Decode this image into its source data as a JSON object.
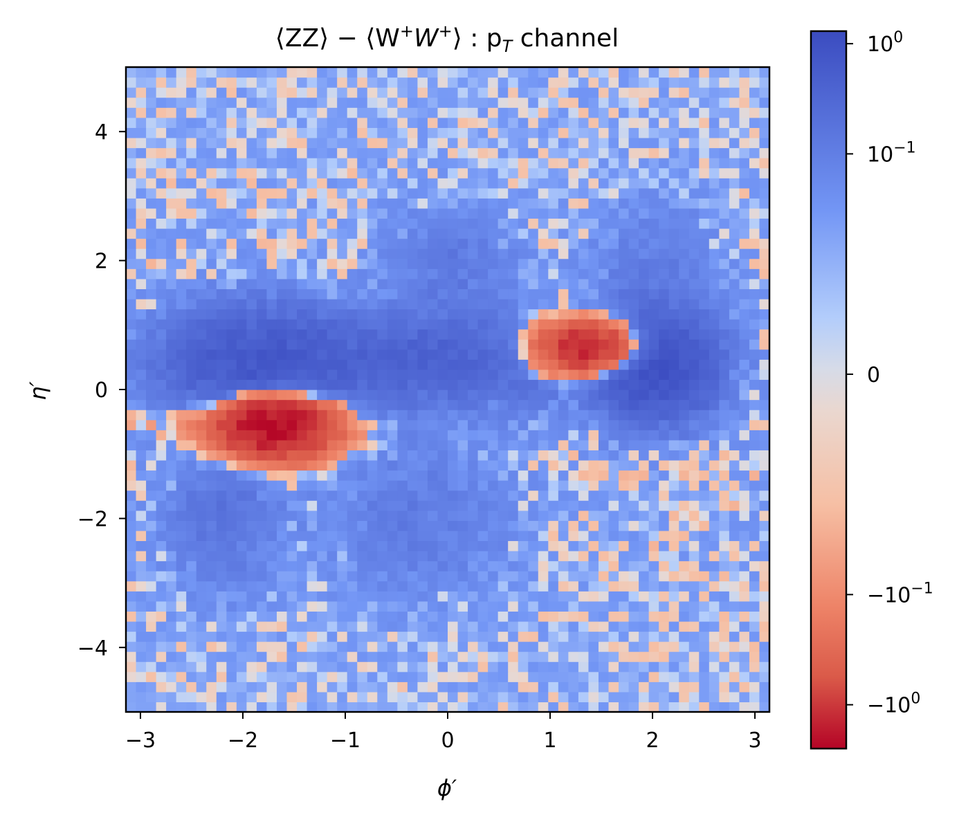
{
  "chart_data": {
    "type": "heatmap",
    "title": "⟨ZZ⟩ − ⟨W⁺W⁺⟩ : p_T channel",
    "title_parts": {
      "main": "⟨ZZ⟩ − ⟨W",
      "sup1": "+",
      "mid": "W",
      "sup2": "+",
      "after": "⟩ : p",
      "sub": "T",
      "tail": " channel"
    },
    "xlabel": "ϕ′",
    "ylabel": "η′",
    "xlim": [
      -3.14159,
      3.14159
    ],
    "ylim": [
      -5,
      5
    ],
    "xticks": [
      -3,
      -2,
      -1,
      0,
      1,
      2,
      3
    ],
    "xtick_labels": [
      "−3",
      "−2",
      "−1",
      "0",
      "1",
      "2",
      "3"
    ],
    "yticks": [
      -4,
      -2,
      0,
      2,
      4
    ],
    "ytick_labels": [
      "−4",
      "−2",
      "0",
      "2",
      "4"
    ],
    "grid": false,
    "colormap": "coolwarm",
    "color_scale": "symlog",
    "color_range": [
      -2.5,
      1.3
    ],
    "linthresh": 0.01,
    "colorbar": {
      "ticks": [
        1,
        0.1,
        0,
        -0.1,
        -1
      ],
      "tick_labels": [
        {
          "base": "10",
          "exp": "0"
        },
        {
          "base": "10",
          "exp": "−1"
        },
        {
          "base": "0",
          "exp": ""
        },
        {
          "base": "−10",
          "exp": "−1"
        },
        {
          "base": "−10",
          "exp": "0"
        }
      ]
    },
    "grid_size": {
      "nx": 64,
      "ny": 64
    },
    "background_value": 0.01,
    "features": [
      {
        "kind": "positive",
        "phi": -1.9,
        "eta": 0.4,
        "sigma_phi": 0.55,
        "sigma_eta": 0.55,
        "amplitude": 0.6
      },
      {
        "kind": "positive",
        "phi": -0.2,
        "eta": 0.45,
        "sigma_phi": 1.1,
        "sigma_eta": 0.45,
        "amplitude": 0.4
      },
      {
        "kind": "positive",
        "phi": 2.05,
        "eta": 0.35,
        "sigma_phi": 0.35,
        "sigma_eta": 0.5,
        "amplitude": 1.0
      },
      {
        "kind": "positive",
        "phi": -2.2,
        "eta": -1.9,
        "sigma_phi": 0.35,
        "sigma_eta": 0.8,
        "amplitude": 0.15
      },
      {
        "kind": "positive",
        "phi": 0.0,
        "eta": 1.9,
        "sigma_phi": 0.4,
        "sigma_eta": 0.6,
        "amplitude": 0.12
      },
      {
        "kind": "positive",
        "phi": 2.0,
        "eta": 1.8,
        "sigma_phi": 0.4,
        "sigma_eta": 0.8,
        "amplitude": 0.1
      },
      {
        "kind": "positive",
        "phi": -0.3,
        "eta": -2.0,
        "sigma_phi": 0.6,
        "sigma_eta": 0.8,
        "amplitude": 0.1
      },
      {
        "kind": "negative",
        "phi": -1.7,
        "eta": -0.55,
        "sigma_phi": 0.35,
        "sigma_eta": 0.3,
        "amplitude": -2.4
      },
      {
        "kind": "negative",
        "phi": -2.6,
        "eta": -0.5,
        "sigma_phi": 0.35,
        "sigma_eta": 0.15,
        "amplitude": -0.08
      },
      {
        "kind": "negative",
        "phi": 1.45,
        "eta": 0.65,
        "sigma_phi": 0.32,
        "sigma_eta": 0.25,
        "amplitude": -1.6
      },
      {
        "kind": "negative",
        "phi": 1.0,
        "eta": 0.6,
        "sigma_phi": 0.25,
        "sigma_eta": 0.3,
        "amplitude": -0.3
      }
    ],
    "noise_amplitude": 0.035
  }
}
